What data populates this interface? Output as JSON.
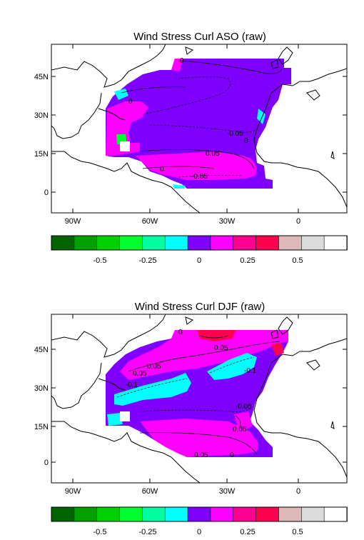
{
  "panels": [
    {
      "title": "Wind Stress Curl ASO (raw)",
      "lat_ticks": [
        "45N",
        "30N",
        "15N",
        "0"
      ],
      "lon_ticks": [
        "90W",
        "60W",
        "30W",
        "0"
      ],
      "contour_labels": [
        "0",
        "0",
        "-0.05",
        "0",
        "0.05",
        "-0.05",
        "0"
      ]
    },
    {
      "title": "Wind Stress Curl DJF (raw)",
      "lat_ticks": [
        "45N",
        "30N",
        "15N",
        "0"
      ],
      "lon_ticks": [
        "90W",
        "60W",
        "30W",
        "0"
      ],
      "contour_labels": [
        "0",
        "0.05",
        "0.05",
        "0.05",
        "-0.1",
        "-0.1",
        "-0.05",
        "0.05",
        "0.05",
        "0"
      ]
    }
  ],
  "colorbar": {
    "colors": [
      "#006400",
      "#00a000",
      "#00d000",
      "#00ff30",
      "#00ffa0",
      "#00ffff",
      "#8000ff",
      "#ff00ff",
      "#ff0090",
      "#ff0050",
      "#dcb8b8",
      "#dcdcdc",
      "#ffffff"
    ],
    "labels": [
      "-0.5",
      "-0.25",
      "0",
      "0.25",
      "0.5"
    ]
  }
}
